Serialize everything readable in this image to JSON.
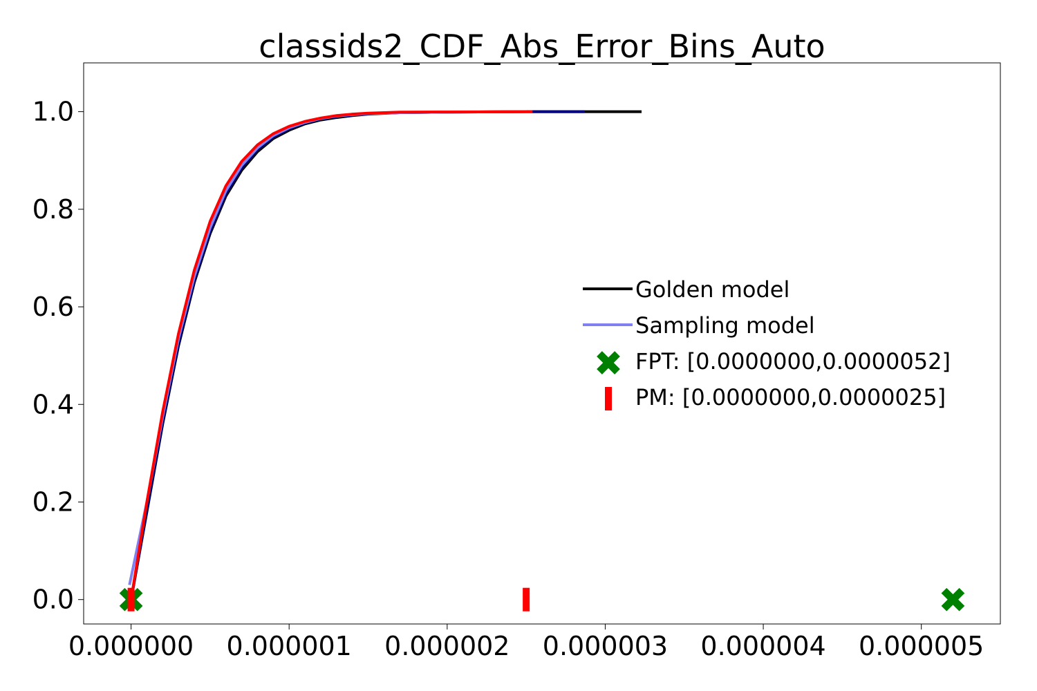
{
  "chart_data": {
    "type": "line",
    "title": "classids2_CDF_Abs_Error_Bins_Auto",
    "xlabel": "",
    "ylabel": "",
    "xlim": [
      -3e-07,
      5.5e-06
    ],
    "ylim": [
      -0.05,
      1.1
    ],
    "grid": false,
    "legend_position": "center-right",
    "x_ticks": [
      {
        "value": 0.0,
        "label": "0.000000"
      },
      {
        "value": 1e-06,
        "label": "0.000001"
      },
      {
        "value": 2e-06,
        "label": "0.000002"
      },
      {
        "value": 3e-06,
        "label": "0.000003"
      },
      {
        "value": 4e-06,
        "label": "0.000004"
      },
      {
        "value": 5e-06,
        "label": "0.000005"
      }
    ],
    "y_ticks": [
      {
        "value": 0.0,
        "label": "0.0"
      },
      {
        "value": 0.2,
        "label": "0.2"
      },
      {
        "value": 0.4,
        "label": "0.4"
      },
      {
        "value": 0.6,
        "label": "0.6"
      },
      {
        "value": 0.8,
        "label": "0.8"
      },
      {
        "value": 1.0,
        "label": "1.0"
      }
    ],
    "series": [
      {
        "name": "Golden model",
        "kind": "line",
        "color": "#000000",
        "x": [
          0.0,
          1e-07,
          2e-07,
          3e-07,
          4e-07,
          5e-07,
          6e-07,
          7e-07,
          8e-07,
          9e-07,
          1e-06,
          1.1e-06,
          1.2e-06,
          1.3e-06,
          1.4e-06,
          1.5e-06,
          1.7e-06,
          2e-06,
          2.5e-06,
          3e-06,
          3.23e-06
        ],
        "y": [
          0.0,
          0.18,
          0.36,
          0.52,
          0.65,
          0.75,
          0.827,
          0.88,
          0.918,
          0.945,
          0.962,
          0.975,
          0.983,
          0.988,
          0.992,
          0.995,
          0.998,
          0.999,
          1.0,
          1.0,
          1.0
        ]
      },
      {
        "name": "",
        "kind": "line",
        "color": "#00007f",
        "x": [
          0.0,
          1e-07,
          2e-07,
          3e-07,
          4e-07,
          5e-07,
          6e-07,
          7e-07,
          8e-07,
          9e-07,
          1e-06,
          1.1e-06,
          1.2e-06,
          1.3e-06,
          1.4e-06,
          1.5e-06,
          1.7e-06,
          2e-06,
          2.5e-06,
          2.87e-06
        ],
        "y": [
          0.0,
          0.185,
          0.365,
          0.525,
          0.655,
          0.755,
          0.832,
          0.885,
          0.922,
          0.948,
          0.965,
          0.977,
          0.985,
          0.99,
          0.993,
          0.996,
          0.998,
          0.999,
          1.0,
          1.0
        ]
      },
      {
        "name": "Sampling model",
        "kind": "line",
        "color": "#8080f0",
        "x": [
          -1e-08,
          1e-07,
          2e-07,
          3e-07,
          4e-07,
          5e-07,
          6e-07,
          7e-07,
          8e-07,
          9e-07,
          1e-06,
          1.1e-06,
          1.2e-06,
          1.3e-06,
          1.4e-06,
          1.5e-06,
          1.7e-06,
          2e-06,
          2.5e-06
        ],
        "y": [
          0.03,
          0.2,
          0.375,
          0.535,
          0.662,
          0.762,
          0.838,
          0.89,
          0.926,
          0.951,
          0.967,
          0.978,
          0.986,
          0.991,
          0.994,
          0.996,
          0.998,
          0.999,
          1.0
        ]
      },
      {
        "name": "",
        "kind": "line",
        "color": "#ff0000",
        "x": [
          0.0,
          1e-07,
          2e-07,
          3e-07,
          4e-07,
          5e-07,
          6e-07,
          7e-07,
          8e-07,
          9e-07,
          1e-06,
          1.1e-06,
          1.2e-06,
          1.3e-06,
          1.4e-06,
          1.5e-06,
          1.7e-06,
          2e-06,
          2.5e-06,
          2.54e-06
        ],
        "y": [
          0.0,
          0.2,
          0.385,
          0.545,
          0.675,
          0.775,
          0.848,
          0.898,
          0.932,
          0.955,
          0.97,
          0.98,
          0.987,
          0.992,
          0.995,
          0.997,
          0.999,
          0.9995,
          1.0,
          1.0
        ]
      }
    ],
    "markers": [
      {
        "name": "FPT: [0.0000000,0.0000052]",
        "marker": "X",
        "color": "#008000",
        "points": [
          {
            "x": 0.0,
            "y": 0.0
          },
          {
            "x": 5.2e-06,
            "y": 0.0
          }
        ]
      },
      {
        "name": "PM: [0.0000000,0.0000025]",
        "marker": "|",
        "color": "#ff0000",
        "points": [
          {
            "x": 0.0,
            "y": 0.0
          },
          {
            "x": 2.5e-06,
            "y": 0.0
          }
        ]
      }
    ],
    "legend_entries": [
      {
        "label": "Golden model",
        "symbol": "line",
        "color": "#000000"
      },
      {
        "label": "Sampling model",
        "symbol": "line",
        "color": "#8080f0"
      },
      {
        "label": "FPT: [0.0000000,0.0000052]",
        "symbol": "X",
        "color": "#008000"
      },
      {
        "label": "PM: [0.0000000,0.0000025]",
        "symbol": "|",
        "color": "#ff0000"
      }
    ]
  }
}
